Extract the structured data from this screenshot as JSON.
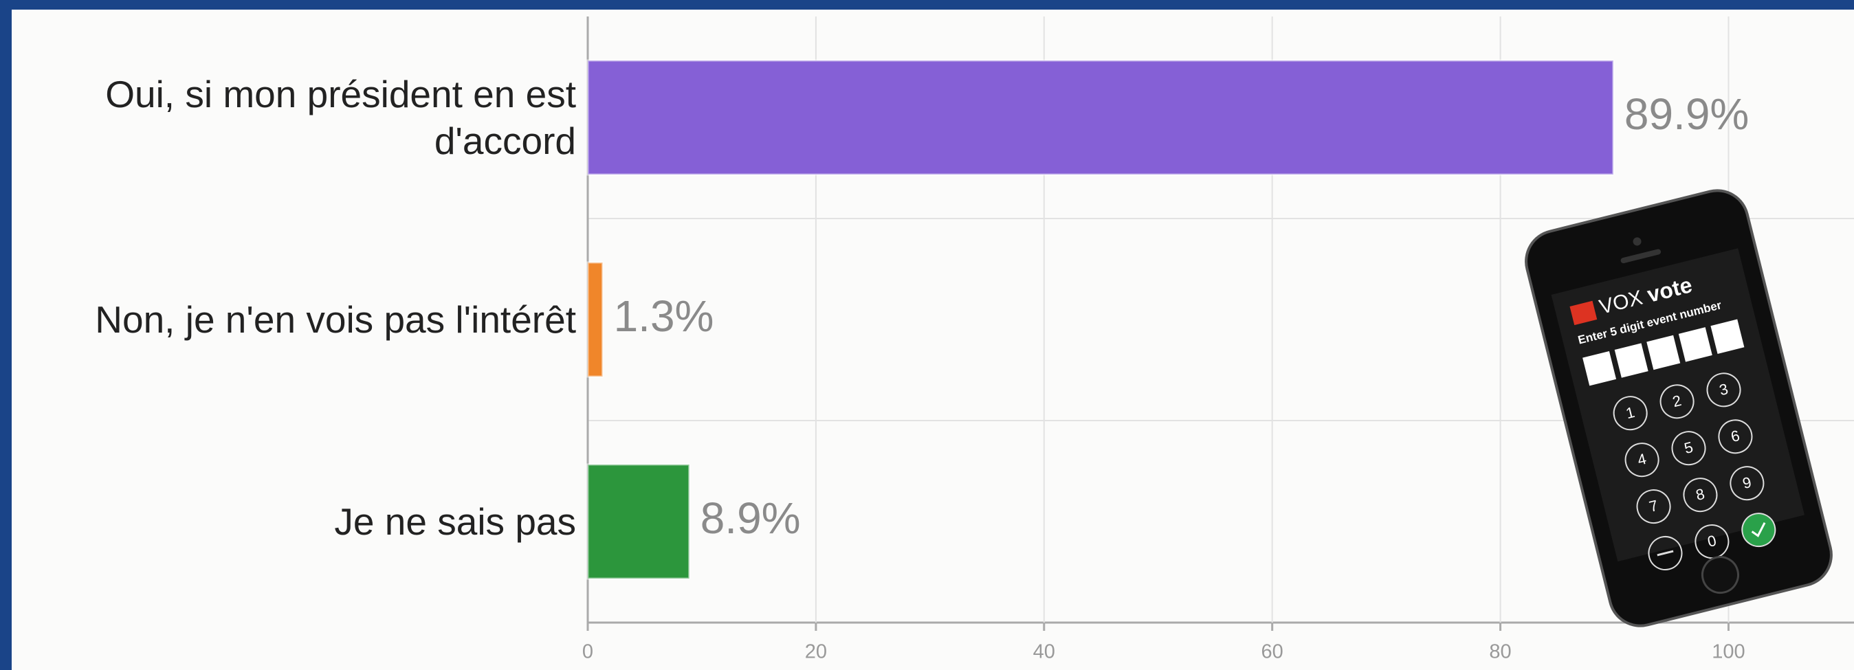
{
  "chart_data": {
    "type": "bar",
    "orientation": "horizontal",
    "categories": [
      "Oui, si mon président en est d'accord",
      "Non, je n'en vois pas l'intérêt",
      "Je ne sais pas"
    ],
    "values": [
      89.9,
      1.3,
      8.9
    ],
    "value_labels": [
      "89.9%",
      "1.3%",
      "8.9%"
    ],
    "colors": [
      "#8560d6",
      "#f0862a",
      "#2c963c"
    ],
    "xlim": [
      0,
      111
    ],
    "xticks": [
      0,
      20,
      40,
      60,
      80,
      100
    ],
    "grid": true
  },
  "phone": {
    "brand_prefix": "VOX",
    "brand": "vote",
    "prompt": "Enter 5 digit event number",
    "keys": [
      "1",
      "2",
      "3",
      "4",
      "5",
      "6",
      "7",
      "8",
      "9",
      "0"
    ]
  }
}
